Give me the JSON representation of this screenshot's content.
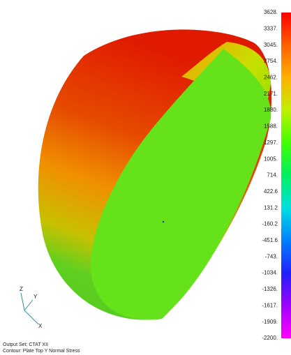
{
  "legend": {
    "labels": [
      "3628.",
      "3337.",
      "3045.",
      "2754.",
      "2462.",
      "2171.",
      "1880.",
      "1588.",
      "1297.",
      "1005.",
      "714.",
      "422.6",
      "131.2",
      "-160.2",
      "-451.6",
      "-743.",
      "-1034.",
      "-1326.",
      "-1617.",
      "-1909.",
      "-2200."
    ]
  },
  "triad": {
    "z": "Z",
    "y": "Y",
    "x": "X"
  },
  "footer": {
    "output_set": "Output Set: CTAT XII",
    "contour": "Contour: Plate Top Y Normal Stress"
  }
}
